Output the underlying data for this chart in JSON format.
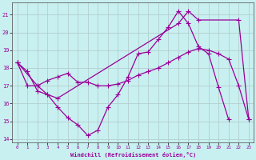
{
  "xlabel": "Windchill (Refroidissement éolien,°C)",
  "bg_color": "#c8f0f0",
  "line_color": "#990099",
  "grid_color": "#b0c8c8",
  "xlim": [
    -0.5,
    23.5
  ],
  "ylim": [
    13.8,
    21.7
  ],
  "yticks": [
    14,
    15,
    16,
    17,
    18,
    19,
    20,
    21
  ],
  "xticks": [
    0,
    1,
    2,
    3,
    4,
    5,
    6,
    7,
    8,
    9,
    10,
    11,
    12,
    13,
    14,
    15,
    16,
    17,
    18,
    19,
    20,
    21,
    22,
    23
  ],
  "line1_x": [
    0,
    1,
    2,
    3,
    4,
    5,
    6,
    7,
    8,
    9,
    10,
    11,
    12,
    13,
    14,
    15,
    16,
    17,
    18,
    19,
    20,
    21
  ],
  "line1_y": [
    18.3,
    17.8,
    16.7,
    16.5,
    15.8,
    15.2,
    14.8,
    14.2,
    14.5,
    15.8,
    16.5,
    17.5,
    18.8,
    18.9,
    19.6,
    20.3,
    21.2,
    20.5,
    19.2,
    18.8,
    16.9,
    15.1
  ],
  "line2_x": [
    0,
    1,
    2,
    3,
    4,
    5,
    6,
    7,
    8,
    9,
    10,
    11,
    12,
    13,
    14,
    15,
    16,
    17,
    18,
    19,
    20,
    21,
    22,
    23
  ],
  "line2_y": [
    18.3,
    17.0,
    17.0,
    17.3,
    17.5,
    17.7,
    17.2,
    17.2,
    17.0,
    17.0,
    17.1,
    17.3,
    17.6,
    17.8,
    18.0,
    18.3,
    18.6,
    18.9,
    19.1,
    19.0,
    18.8,
    18.5,
    17.0,
    15.1
  ],
  "line3_x": [
    0,
    2,
    3,
    4,
    16,
    17,
    18,
    22,
    23
  ],
  "line3_y": [
    18.3,
    17.0,
    16.5,
    16.3,
    20.5,
    21.2,
    20.7,
    20.7,
    15.1
  ]
}
